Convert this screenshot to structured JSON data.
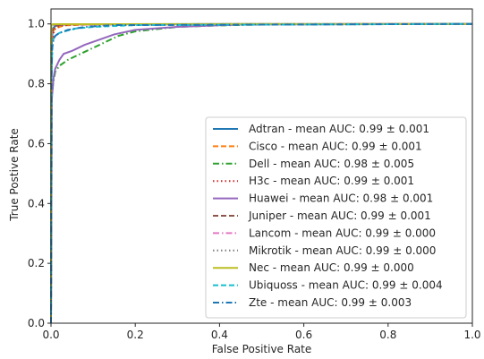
{
  "chart_data": {
    "type": "line",
    "title": "",
    "xlabel": "False Positive Rate",
    "ylabel": "True Postive Rate",
    "xlim": [
      0,
      1
    ],
    "ylim": [
      0,
      1.05
    ],
    "xticks": [
      0.0,
      0.2,
      0.4,
      0.6,
      0.8,
      1.0
    ],
    "yticks": [
      0.0,
      0.2,
      0.4,
      0.6,
      0.8,
      1.0
    ],
    "tick_labels_x": [
      "0.0",
      "0.2",
      "0.4",
      "0.6",
      "0.8",
      "1.0"
    ],
    "tick_labels_y": [
      "0.0",
      "0.2",
      "0.4",
      "0.6",
      "0.8",
      "1.0"
    ],
    "grid": false,
    "legend_position": "lower-right",
    "series": [
      {
        "name": "Adtran - mean AUC: 0.99 ± 0.001",
        "color": "#1f77b4",
        "dash": "solid",
        "x": [
          0,
          0.0005,
          0.002,
          0.005,
          0.01,
          0.02,
          0.05,
          1.0
        ],
        "y": [
          0,
          0.8,
          0.95,
          0.985,
          0.993,
          0.997,
          0.999,
          1.0
        ]
      },
      {
        "name": "Cisco - mean AUC: 0.99 ± 0.001",
        "color": "#ff7f0e",
        "dash": "dashed",
        "x": [
          0,
          0.0005,
          0.002,
          0.005,
          0.01,
          0.03,
          0.1,
          1.0
        ],
        "y": [
          0,
          0.78,
          0.94,
          0.975,
          0.985,
          0.995,
          0.999,
          1.0
        ]
      },
      {
        "name": "Dell - mean AUC: 0.98 ± 0.005",
        "color": "#2ca02c",
        "dash": "dashdot",
        "x": [
          0,
          0.002,
          0.005,
          0.01,
          0.02,
          0.04,
          0.07,
          0.1,
          0.13,
          0.16,
          0.2,
          0.3,
          0.4,
          0.5,
          1.0
        ],
        "y": [
          0,
          0.75,
          0.8,
          0.84,
          0.86,
          0.88,
          0.9,
          0.92,
          0.94,
          0.96,
          0.975,
          0.99,
          0.995,
          0.998,
          1.0
        ]
      },
      {
        "name": "H3c - mean AUC: 0.99 ± 0.001",
        "color": "#d62728",
        "dash": "dotted",
        "x": [
          0,
          0.001,
          0.003,
          0.006,
          0.01,
          0.02,
          0.05,
          1.0
        ],
        "y": [
          0,
          0.8,
          0.94,
          0.97,
          0.985,
          0.993,
          0.998,
          1.0
        ]
      },
      {
        "name": "Huawei - mean AUC: 0.98 ± 0.001",
        "color": "#9467bd",
        "dash": "solid",
        "x": [
          0,
          0.002,
          0.006,
          0.01,
          0.02,
          0.03,
          0.05,
          0.08,
          0.12,
          0.15,
          0.2,
          0.3,
          0.45,
          1.0
        ],
        "y": [
          0,
          0.75,
          0.82,
          0.85,
          0.88,
          0.9,
          0.91,
          0.93,
          0.95,
          0.965,
          0.98,
          0.99,
          0.998,
          1.0
        ]
      },
      {
        "name": "Juniper - mean AUC: 0.99 ± 0.001",
        "color": "#8c564b",
        "dash": "dashed",
        "x": [
          0,
          0.0005,
          0.002,
          0.005,
          0.01,
          0.03,
          1.0
        ],
        "y": [
          0,
          0.8,
          0.96,
          0.985,
          0.993,
          0.998,
          1.0
        ]
      },
      {
        "name": "Lancom - mean AUC: 0.99 ± 0.000",
        "color": "#e377c2",
        "dash": "dashdot",
        "x": [
          0,
          0.0005,
          0.002,
          0.005,
          0.01,
          1.0
        ],
        "y": [
          0,
          0.9,
          0.985,
          0.995,
          0.999,
          1.0
        ]
      },
      {
        "name": "Mikrotik - mean AUC: 0.99 ± 0.000",
        "color": "#7f7f7f",
        "dash": "dotted",
        "x": [
          0,
          0.0005,
          0.002,
          0.005,
          0.01,
          1.0
        ],
        "y": [
          0,
          0.92,
          0.99,
          0.996,
          0.999,
          1.0
        ]
      },
      {
        "name": "Nec - mean AUC: 0.99 ± 0.000",
        "color": "#bcbd22",
        "dash": "solid",
        "x": [
          0,
          0.0003,
          0.001,
          0.004,
          1.0
        ],
        "y": [
          0,
          0.95,
          0.995,
          0.999,
          1.0
        ]
      },
      {
        "name": "Ubiquoss - mean AUC: 0.99 ± 0.004",
        "color": "#17becf",
        "dash": "dashed",
        "x": [
          0,
          0.001,
          0.003,
          0.006,
          0.01,
          0.02,
          0.04,
          0.06,
          0.1,
          0.2,
          1.0
        ],
        "y": [
          0,
          0.8,
          0.93,
          0.95,
          0.96,
          0.97,
          0.978,
          0.985,
          0.99,
          0.996,
          1.0
        ]
      },
      {
        "name": "Zte - mean AUC: 0.99 ± 0.003",
        "color": "#1f77b4",
        "dash": "dashdot",
        "x": [
          0,
          0.001,
          0.003,
          0.006,
          0.01,
          0.02,
          0.04,
          0.08,
          0.15,
          1.0
        ],
        "y": [
          0,
          0.8,
          0.92,
          0.95,
          0.96,
          0.97,
          0.98,
          0.99,
          0.996,
          1.0
        ]
      }
    ]
  }
}
